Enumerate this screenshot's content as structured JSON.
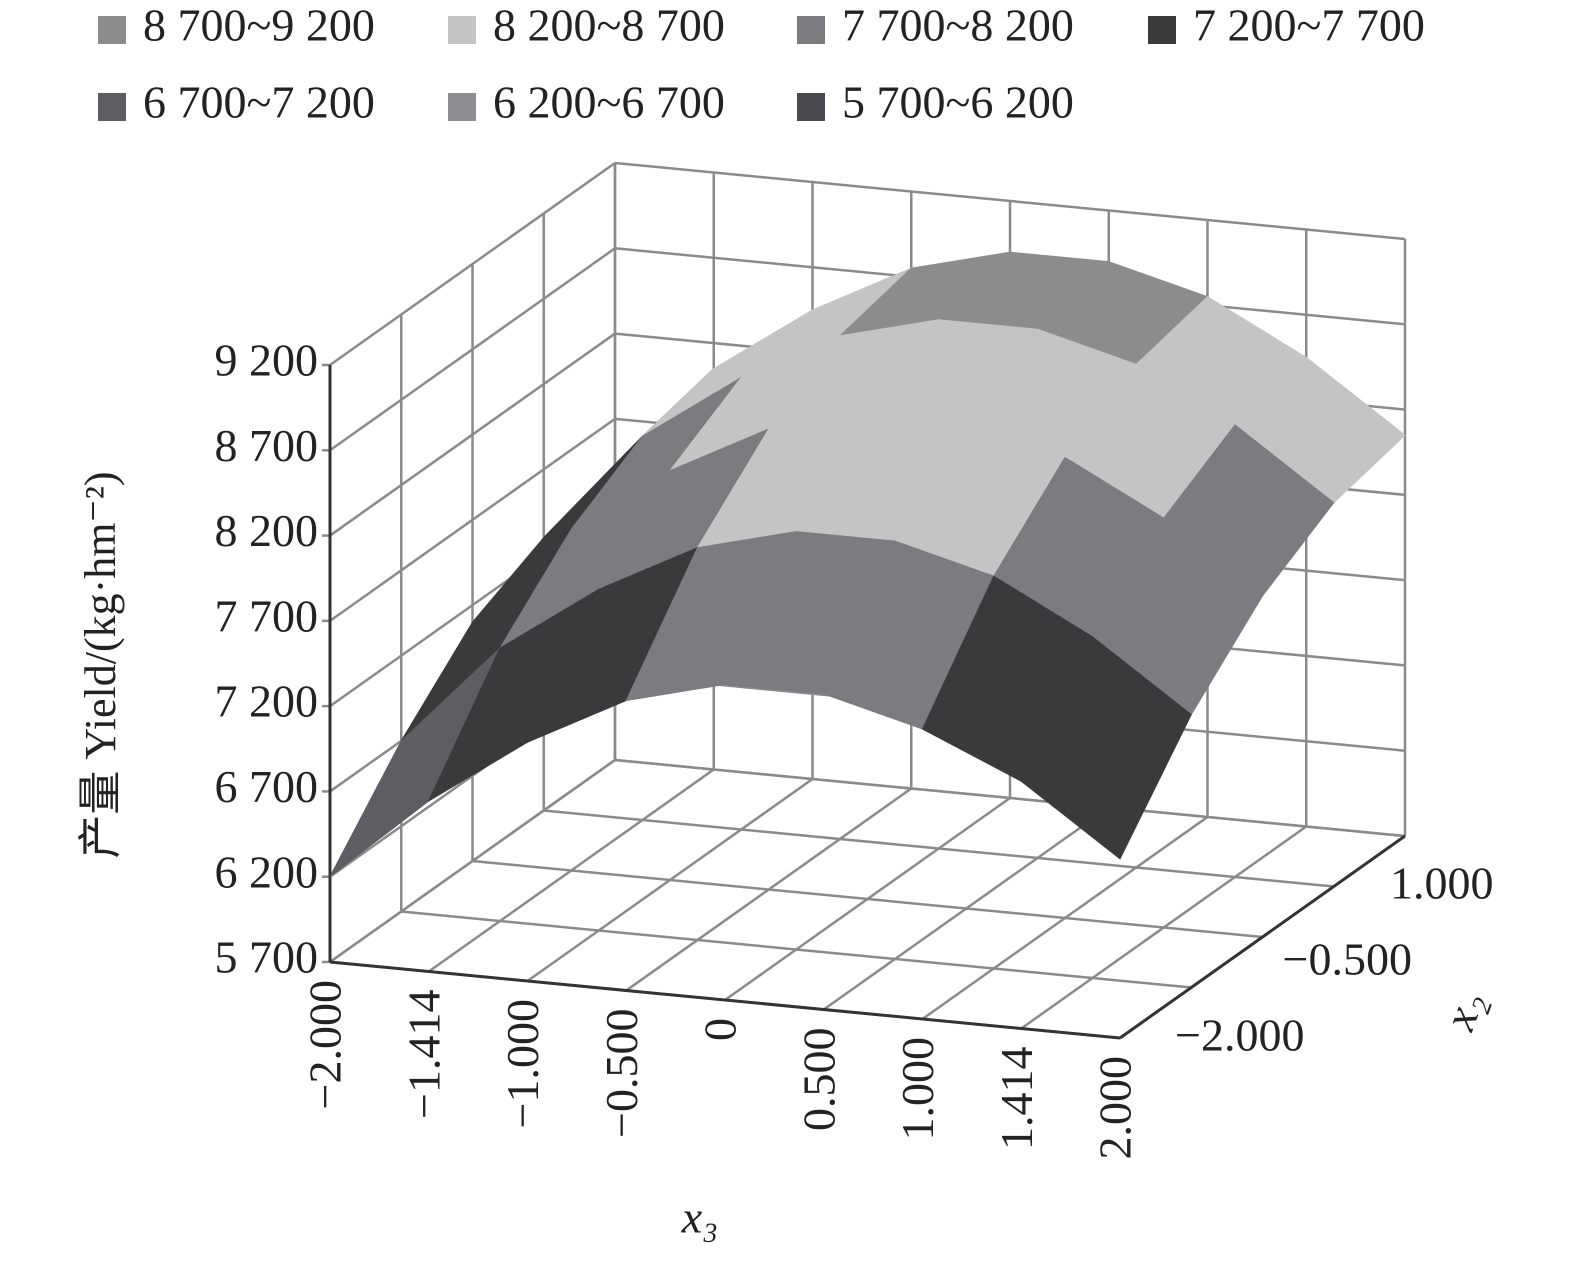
{
  "chart_data": {
    "type": "surface",
    "bands": [
      {
        "name": "8 700~9 200",
        "color": "#8c8c8c"
      },
      {
        "name": "8 200~8 700",
        "color": "#c4c4c4"
      },
      {
        "name": "7 700~8 200",
        "color": "#7b7b80"
      },
      {
        "name": "7 200~7 700",
        "color": "#3a3a3c"
      },
      {
        "name": "6 700~7 200",
        "color": "#5e5e62"
      },
      {
        "name": "6 200~6 700",
        "color": "#8e8e92"
      },
      {
        "name": "5 700~6 200",
        "color": "#4a4a4e"
      }
    ],
    "zlabel": "产量 Yield/(kg·hm⁻²)",
    "xlabel": "x₃",
    "ylabel": "x₂",
    "x": [
      "−2.000",
      "−1.414",
      "−1.000",
      "−0.500",
      "0",
      "0.500",
      "1.000",
      "1.414",
      "2.000"
    ],
    "y": [
      "−2.000",
      null,
      "−0.500",
      null,
      "1.000"
    ],
    "zlim": [
      5700,
      9200
    ],
    "zticks": [
      {
        "value": 5700,
        "label": "5 700"
      },
      {
        "value": 6200,
        "label": "6 200"
      },
      {
        "value": 6700,
        "label": "6 700"
      },
      {
        "value": 7200,
        "label": "7 200"
      },
      {
        "value": 7700,
        "label": "7 700"
      },
      {
        "value": 8200,
        "label": "8 200"
      },
      {
        "value": 8700,
        "label": "8 700"
      },
      {
        "value": 9200,
        "label": "9 200"
      }
    ],
    "z": [
      [
        6200,
        6700,
        7100,
        7400,
        7550,
        7550,
        7400,
        7150,
        6750
      ],
      [
        6700,
        7300,
        7700,
        8000,
        8150,
        8150,
        8000,
        7700,
        7300
      ],
      [
        7100,
        7700,
        8100,
        8400,
        8550,
        8550,
        8400,
        8100,
        7700
      ],
      [
        7300,
        7950,
        8350,
        8650,
        8800,
        8800,
        8650,
        8350,
        7950
      ],
      [
        7400,
        8050,
        8450,
        8750,
        8900,
        8900,
        8750,
        8450,
        8050
      ]
    ]
  }
}
